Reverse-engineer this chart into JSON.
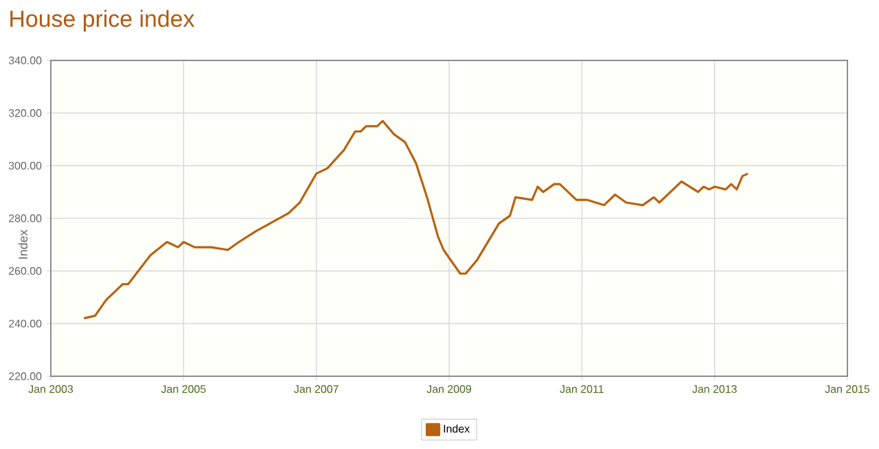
{
  "chart_data": {
    "type": "line",
    "title": "House price index",
    "ylabel": "Index",
    "x": [
      "2003-07",
      "2003-09",
      "2003-11",
      "2004-02",
      "2004-03",
      "2004-07",
      "2004-10",
      "2004-12",
      "2005-01",
      "2005-03",
      "2005-06",
      "2005-09",
      "2005-11",
      "2006-02",
      "2006-08",
      "2006-10",
      "2007-01",
      "2007-03",
      "2007-06",
      "2007-08",
      "2007-09",
      "2007-10",
      "2007-12",
      "2008-01",
      "2008-03",
      "2008-05",
      "2008-07",
      "2008-09",
      "2008-11",
      "2008-12",
      "2009-03",
      "2009-04",
      "2009-06",
      "2009-10",
      "2009-12",
      "2010-01",
      "2010-04",
      "2010-05",
      "2010-06",
      "2010-08",
      "2010-09",
      "2010-12",
      "2011-02",
      "2011-05",
      "2011-07",
      "2011-09",
      "2011-12",
      "2012-02",
      "2012-03",
      "2012-05",
      "2012-07",
      "2012-10",
      "2012-11",
      "2012-12",
      "2013-01",
      "2013-03",
      "2013-04",
      "2013-05",
      "2013-06",
      "2013-07"
    ],
    "series": [
      {
        "name": "Index",
        "color": "#b8620f",
        "values": [
          242,
          243,
          249,
          255,
          255,
          266,
          271,
          269,
          271,
          269,
          269,
          268,
          271,
          275,
          282,
          286,
          297,
          299,
          306,
          313,
          313,
          315,
          315,
          317,
          312,
          309,
          301,
          288,
          273,
          268,
          259,
          259,
          264,
          278,
          281,
          288,
          287,
          292,
          290,
          293,
          293,
          287,
          287,
          285,
          289,
          286,
          285,
          288,
          286,
          290,
          294,
          290,
          292,
          291,
          292,
          291,
          293,
          291,
          296,
          297
        ]
      }
    ],
    "xlim": [
      "2003-01",
      "2015-01"
    ],
    "xticks": [
      {
        "value": "2003-01",
        "label": "Jan 2003"
      },
      {
        "value": "2005-01",
        "label": "Jan 2005"
      },
      {
        "value": "2007-01",
        "label": "Jan 2007"
      },
      {
        "value": "2009-01",
        "label": "Jan 2009"
      },
      {
        "value": "2011-01",
        "label": "Jan 2011"
      },
      {
        "value": "2013-01",
        "label": "Jan 2013"
      },
      {
        "value": "2015-01",
        "label": "Jan 2015"
      }
    ],
    "ylim": [
      220,
      340
    ],
    "yticks": [
      {
        "value": 220,
        "label": "220.00"
      },
      {
        "value": 240,
        "label": "240.00"
      },
      {
        "value": 260,
        "label": "260.00"
      },
      {
        "value": 280,
        "label": "280.00"
      },
      {
        "value": 300,
        "label": "300.00"
      },
      {
        "value": 320,
        "label": "320.00"
      },
      {
        "value": 340,
        "label": "340.00"
      }
    ],
    "grid": true,
    "legend": "bottom",
    "marker": "none",
    "line_style": "solid"
  }
}
